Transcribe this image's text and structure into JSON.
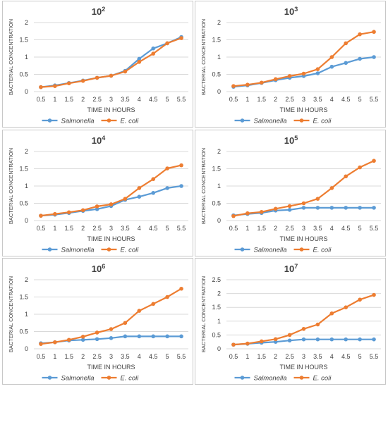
{
  "colors": {
    "salmonella": "#5b9bd5",
    "ecoli": "#ed7d31",
    "gridline": "#d9d9d9",
    "text": "#404040",
    "border": "#c8c8c8"
  },
  "chart_data": [
    {
      "type": "line",
      "title_base": "10",
      "title_exp": "2",
      "xlabel": "TIME IN HOURS",
      "ylabel": "BACTERIAL CONCENTRATION",
      "x": [
        "0.5",
        "1",
        "1.5",
        "2",
        "2.5",
        "3",
        "3.5",
        "4",
        "4.5",
        "5",
        "5.5"
      ],
      "ylim": [
        0,
        2
      ],
      "yticks": [
        "0",
        "0.5",
        "1",
        "1.5",
        "2"
      ],
      "grid": true,
      "legend": "bottom",
      "series": [
        {
          "name": "Salmonella",
          "values": [
            0.13,
            0.18,
            0.25,
            0.32,
            0.4,
            0.46,
            0.6,
            0.95,
            1.25,
            1.4,
            1.58
          ]
        },
        {
          "name": "E. coli",
          "values": [
            0.13,
            0.16,
            0.24,
            0.31,
            0.4,
            0.46,
            0.58,
            0.86,
            1.1,
            1.4,
            1.55
          ]
        }
      ]
    },
    {
      "type": "line",
      "title_base": "10",
      "title_exp": "3",
      "xlabel": "TIME IN HOURS",
      "ylabel": "BACTERIAL CONCENTRATION",
      "x": [
        "0.5",
        "1",
        "1.5",
        "2",
        "2.5",
        "3",
        "3.5",
        "4",
        "4.5",
        "5",
        "5.5"
      ],
      "ylim": [
        0,
        2
      ],
      "yticks": [
        "0",
        "0.5",
        "1",
        "1.5",
        "2"
      ],
      "grid": true,
      "legend": "bottom",
      "series": [
        {
          "name": "Salmonella",
          "values": [
            0.14,
            0.18,
            0.25,
            0.33,
            0.4,
            0.45,
            0.53,
            0.72,
            0.83,
            0.95,
            1.0
          ]
        },
        {
          "name": "E. coli",
          "values": [
            0.16,
            0.2,
            0.26,
            0.36,
            0.45,
            0.52,
            0.65,
            1.0,
            1.4,
            1.66,
            1.73
          ]
        }
      ]
    },
    {
      "type": "line",
      "title_base": "10",
      "title_exp": "4",
      "xlabel": "TIME IN HOURS",
      "ylabel": "BACTERIAL CONCENTRATION",
      "x": [
        "0.5",
        "1",
        "1.5",
        "2",
        "2.5",
        "3",
        "3.5",
        "4",
        "4.5",
        "5",
        "5.5"
      ],
      "ylim": [
        0,
        2
      ],
      "yticks": [
        "0",
        "0.5",
        "1",
        "1.5",
        "2"
      ],
      "grid": true,
      "legend": "bottom",
      "series": [
        {
          "name": "Salmonella",
          "values": [
            0.14,
            0.17,
            0.22,
            0.28,
            0.33,
            0.42,
            0.6,
            0.69,
            0.8,
            0.94,
            1.0
          ]
        },
        {
          "name": "E. coli",
          "values": [
            0.14,
            0.19,
            0.24,
            0.3,
            0.41,
            0.47,
            0.63,
            0.94,
            1.2,
            1.51,
            1.6
          ]
        }
      ]
    },
    {
      "type": "line",
      "title_base": "10",
      "title_exp": "5",
      "xlabel": "TIME IN HOURS",
      "ylabel": "BACTERIAL CONCENTRATION",
      "x": [
        "0.5",
        "1",
        "1.5",
        "2",
        "2.5",
        "3",
        "3.5",
        "4",
        "4.5",
        "5",
        "5.5"
      ],
      "ylim": [
        0,
        2
      ],
      "yticks": [
        "0",
        "0.5",
        "1",
        "1.5",
        "2"
      ],
      "grid": true,
      "legend": "bottom",
      "series": [
        {
          "name": "Salmonella",
          "values": [
            0.15,
            0.19,
            0.22,
            0.29,
            0.31,
            0.37,
            0.37,
            0.37,
            0.37,
            0.37,
            0.37
          ]
        },
        {
          "name": "E. coli",
          "values": [
            0.13,
            0.21,
            0.25,
            0.34,
            0.42,
            0.5,
            0.63,
            0.94,
            1.28,
            1.54,
            1.73
          ]
        }
      ]
    },
    {
      "type": "line",
      "title_base": "10",
      "title_exp": "6",
      "xlabel": "TIME IN HOURS",
      "ylabel": "BACTERIAL CONCENTRATION",
      "x": [
        "0.5",
        "1",
        "1.5",
        "2",
        "2.5",
        "3",
        "3.5",
        "4",
        "4.5",
        "5",
        "5.5"
      ],
      "ylim": [
        0,
        2
      ],
      "yticks": [
        "0",
        "0.5",
        "1",
        "1.5",
        "2"
      ],
      "grid": true,
      "legend": "bottom",
      "series": [
        {
          "name": "Salmonella",
          "values": [
            0.16,
            0.19,
            0.24,
            0.26,
            0.28,
            0.31,
            0.36,
            0.36,
            0.36,
            0.36,
            0.36
          ]
        },
        {
          "name": "E. coli",
          "values": [
            0.14,
            0.19,
            0.26,
            0.35,
            0.47,
            0.57,
            0.75,
            1.1,
            1.3,
            1.5,
            1.74
          ]
        }
      ]
    },
    {
      "type": "line",
      "title_base": "10",
      "title_exp": "7",
      "xlabel": "TIME IN HOURS",
      "ylabel": "BACTERIAL CONCENTRATION",
      "x": [
        "0.5",
        "1",
        "1.5",
        "2",
        "2.5",
        "3",
        "3.5",
        "4",
        "4.5",
        "5",
        "5.5"
      ],
      "ylim": [
        0,
        2.5
      ],
      "yticks": [
        "0",
        "0.5",
        "1",
        "1.5",
        "2",
        "2.5"
      ],
      "grid": true,
      "legend": "bottom",
      "series": [
        {
          "name": "Salmonella",
          "values": [
            0.15,
            0.18,
            0.22,
            0.25,
            0.3,
            0.34,
            0.34,
            0.34,
            0.34,
            0.34,
            0.34
          ]
        },
        {
          "name": "E. coli",
          "values": [
            0.15,
            0.19,
            0.27,
            0.35,
            0.5,
            0.72,
            0.88,
            1.28,
            1.5,
            1.78,
            1.95
          ]
        }
      ]
    }
  ]
}
